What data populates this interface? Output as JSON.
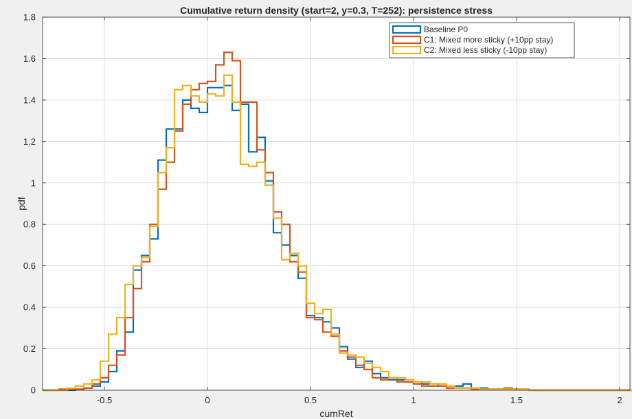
{
  "chart_data": {
    "type": "line",
    "subtype": "stairs-histogram-pdf",
    "title": "Cumulative return density (start=2, y=0.3, T=252): persistence stress",
    "xlabel": "cumRet",
    "ylabel": "pdf",
    "xlim": [
      -0.8,
      2.05
    ],
    "ylim": [
      0,
      1.8
    ],
    "xticks": [
      -0.5,
      0,
      0.5,
      1,
      1.5,
      2
    ],
    "xtick_labels": [
      "-0.5",
      "0",
      "0.5",
      "1",
      "1.5",
      "2"
    ],
    "yticks": [
      0,
      0.2,
      0.4,
      0.6,
      0.8,
      1,
      1.2,
      1.4,
      1.6,
      1.8
    ],
    "ytick_labels": [
      "0",
      "0.2",
      "0.4",
      "0.6",
      "0.8",
      "1",
      "1.2",
      "1.4",
      "1.6",
      "1.8"
    ],
    "grid": true,
    "legend_position": "top-right",
    "bin_start": -0.8,
    "bin_width": 0.04,
    "series": [
      {
        "name": "Baseline P0",
        "color": "#0072BD",
        "values": [
          0,
          0,
          0,
          0,
          0.005,
          0.01,
          0.02,
          0.04,
          0.09,
          0.19,
          0.28,
          0.58,
          0.65,
          0.73,
          1.11,
          1.26,
          1.26,
          1.4,
          1.36,
          1.34,
          1.46,
          1.46,
          1.47,
          1.35,
          1.38,
          1.15,
          1.22,
          1.01,
          0.76,
          0.7,
          0.65,
          0.54,
          0.36,
          0.35,
          0.33,
          0.3,
          0.21,
          0.15,
          0.11,
          0.14,
          0.08,
          0.06,
          0.05,
          0.05,
          0.05,
          0.04,
          0.03,
          0.03,
          0.02,
          0.02,
          0.02,
          0.03,
          0.01,
          0.01,
          0.005,
          0.005,
          0.005,
          0.005,
          0.005,
          0,
          0,
          0,
          0,
          0,
          0,
          0,
          0,
          0,
          0,
          0,
          0,
          0
        ]
      },
      {
        "name": "C1: Mixed more sticky (+10pp stay)",
        "color": "#D95319",
        "values": [
          0,
          0,
          0.005,
          0.005,
          0.005,
          0.01,
          0.03,
          0.06,
          0.12,
          0.17,
          0.35,
          0.49,
          0.62,
          0.8,
          0.97,
          1.1,
          1.25,
          1.38,
          1.45,
          1.48,
          1.49,
          1.57,
          1.63,
          1.59,
          1.39,
          1.39,
          1.16,
          1.05,
          0.86,
          0.8,
          0.62,
          0.57,
          0.35,
          0.34,
          0.28,
          0.26,
          0.19,
          0.16,
          0.12,
          0.1,
          0.06,
          0.05,
          0.06,
          0.04,
          0.04,
          0.03,
          0.02,
          0.02,
          0.02,
          0.01,
          0.01,
          0.01,
          0.005,
          0.005,
          0.005,
          0.005,
          0.01,
          0.005,
          0.005,
          0,
          0,
          0,
          0,
          0,
          0,
          0,
          0,
          0,
          0,
          0,
          0,
          0
        ]
      },
      {
        "name": "C2: Mixed less sticky (-10pp stay)",
        "color": "#EDB120",
        "values": [
          0,
          0,
          0,
          0.01,
          0.02,
          0.03,
          0.05,
          0.14,
          0.27,
          0.35,
          0.51,
          0.6,
          0.64,
          0.79,
          1.05,
          1.17,
          1.45,
          1.47,
          1.42,
          1.39,
          1.43,
          1.42,
          1.52,
          1.39,
          1.09,
          1.08,
          1.1,
          0.99,
          0.83,
          0.63,
          0.66,
          0.6,
          0.42,
          0.37,
          0.39,
          0.27,
          0.18,
          0.17,
          0.16,
          0.13,
          0.11,
          0.09,
          0.06,
          0.06,
          0.05,
          0.04,
          0.04,
          0.03,
          0.03,
          0.02,
          0.01,
          0.01,
          0.01,
          0.005,
          0.005,
          0.005,
          0.005,
          0.005,
          0.005,
          0,
          0,
          0,
          0,
          0,
          0,
          0,
          0,
          0,
          0,
          0,
          0,
          0
        ]
      }
    ]
  }
}
